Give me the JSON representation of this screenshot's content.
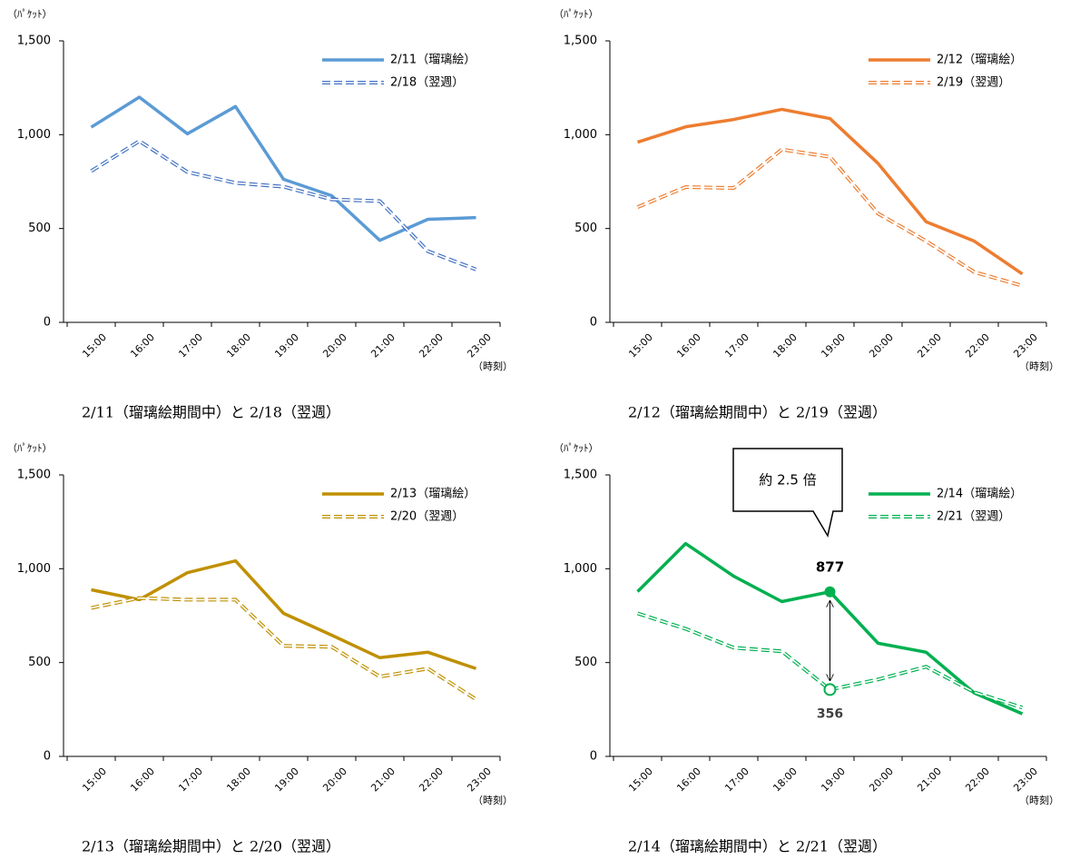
{
  "chart_data": [
    {
      "type": "line",
      "caption": "2/11（瑠璃絵期間中）と 2/18（翌週）",
      "y_unit": "（ﾊﾟｹｯﾄ）",
      "x_unit": "（時刻）",
      "categories": [
        "15:00",
        "16:00",
        "17:00",
        "18:00",
        "19:00",
        "20:00",
        "21:00",
        "22:00",
        "23:00"
      ],
      "series": [
        {
          "name": "2/11（瑠璃絵）",
          "color": "#5b9bd5",
          "style": "solid",
          "values": [
            1040,
            1200,
            1005,
            1150,
            762,
            675,
            437,
            549,
            558
          ]
        },
        {
          "name": "2/18（翌週）",
          "color": "#4472c4",
          "style": "dashed",
          "values": [
            806,
            966,
            801,
            743,
            723,
            655,
            646,
            379,
            282
          ]
        }
      ],
      "ylim": [
        0,
        1500
      ],
      "yticks": [
        0,
        500,
        {
          "value": 1000,
          "label": "1,000"
        },
        {
          "value": 1500,
          "label": "1,500"
        }
      ],
      "grid": false
    },
    {
      "type": "line",
      "caption": "2/12（瑠璃絵期間中）と 2/19（翌週）",
      "y_unit": "（ﾊﾟｹｯﾄ）",
      "x_unit": "（時刻）",
      "categories": [
        "15:00",
        "16:00",
        "17:00",
        "18:00",
        "19:00",
        "20:00",
        "21:00",
        "22:00",
        "23:00"
      ],
      "series": [
        {
          "name": "2/12（瑠璃絵）",
          "color": "#ed7d31",
          "style": "solid",
          "values": [
            960,
            1042,
            1081,
            1135,
            1086,
            847,
            536,
            433,
            258
          ]
        },
        {
          "name": "2/19（翌週）",
          "color": "#ed7d31",
          "style": "dashed",
          "values": [
            614,
            721,
            716,
            921,
            882,
            580,
            433,
            268,
            195
          ]
        }
      ],
      "ylim": [
        0,
        1500
      ],
      "yticks": [
        0,
        500,
        {
          "value": 1000,
          "label": "1,000"
        },
        {
          "value": 1500,
          "label": "1,500"
        }
      ],
      "grid": false
    },
    {
      "type": "line",
      "caption": "2/13（瑠璃絵期間中）と 2/20（翌週）",
      "y_unit": "（ﾊﾟｹｯﾄ）",
      "x_unit": "（時刻）",
      "categories": [
        "15:00",
        "16:00",
        "17:00",
        "18:00",
        "19:00",
        "20:00",
        "21:00",
        "22:00",
        "23:00"
      ],
      "series": [
        {
          "name": "2/13（瑠璃絵）",
          "color": "#bf9000",
          "style": "solid",
          "values": [
            888,
            835,
            979,
            1042,
            762,
            646,
            526,
            555,
            468
          ]
        },
        {
          "name": "2/20（翌週）",
          "color": "#bf9000",
          "style": "dashed",
          "values": [
            791,
            844,
            835,
            835,
            589,
            584,
            425,
            468,
            304
          ]
        }
      ],
      "ylim": [
        0,
        1500
      ],
      "yticks": [
        0,
        500,
        {
          "value": 1000,
          "label": "1,000"
        },
        {
          "value": 1500,
          "label": "1,500"
        }
      ],
      "grid": false
    },
    {
      "type": "line",
      "caption": "2/14（瑠璃絵期間中）と 2/21（翌週）",
      "y_unit": "（ﾊﾟｹｯﾄ）",
      "x_unit": "（時刻）",
      "categories": [
        "15:00",
        "16:00",
        "17:00",
        "18:00",
        "19:00",
        "20:00",
        "21:00",
        "22:00",
        "23:00"
      ],
      "series": [
        {
          "name": "2/14（瑠璃絵）",
          "color": "#00b050",
          "style": "solid",
          "values": [
            878,
            1134,
            960,
            825,
            877,
            603,
            555,
            338,
            227
          ]
        },
        {
          "name": "2/21（翌週）",
          "color": "#00b050",
          "style": "dashed",
          "values": [
            762,
            680,
            579,
            560,
            356,
            410,
            478,
            342,
            260
          ]
        }
      ],
      "annotation": {
        "text": "約 2.5 倍",
        "category": "19:00"
      },
      "ylim": [
        0,
        1500
      ],
      "yticks": [
        0,
        500,
        {
          "value": 1000,
          "label": "1,000"
        },
        {
          "value": 1500,
          "label": "1,500"
        }
      ],
      "grid": false
    }
  ]
}
